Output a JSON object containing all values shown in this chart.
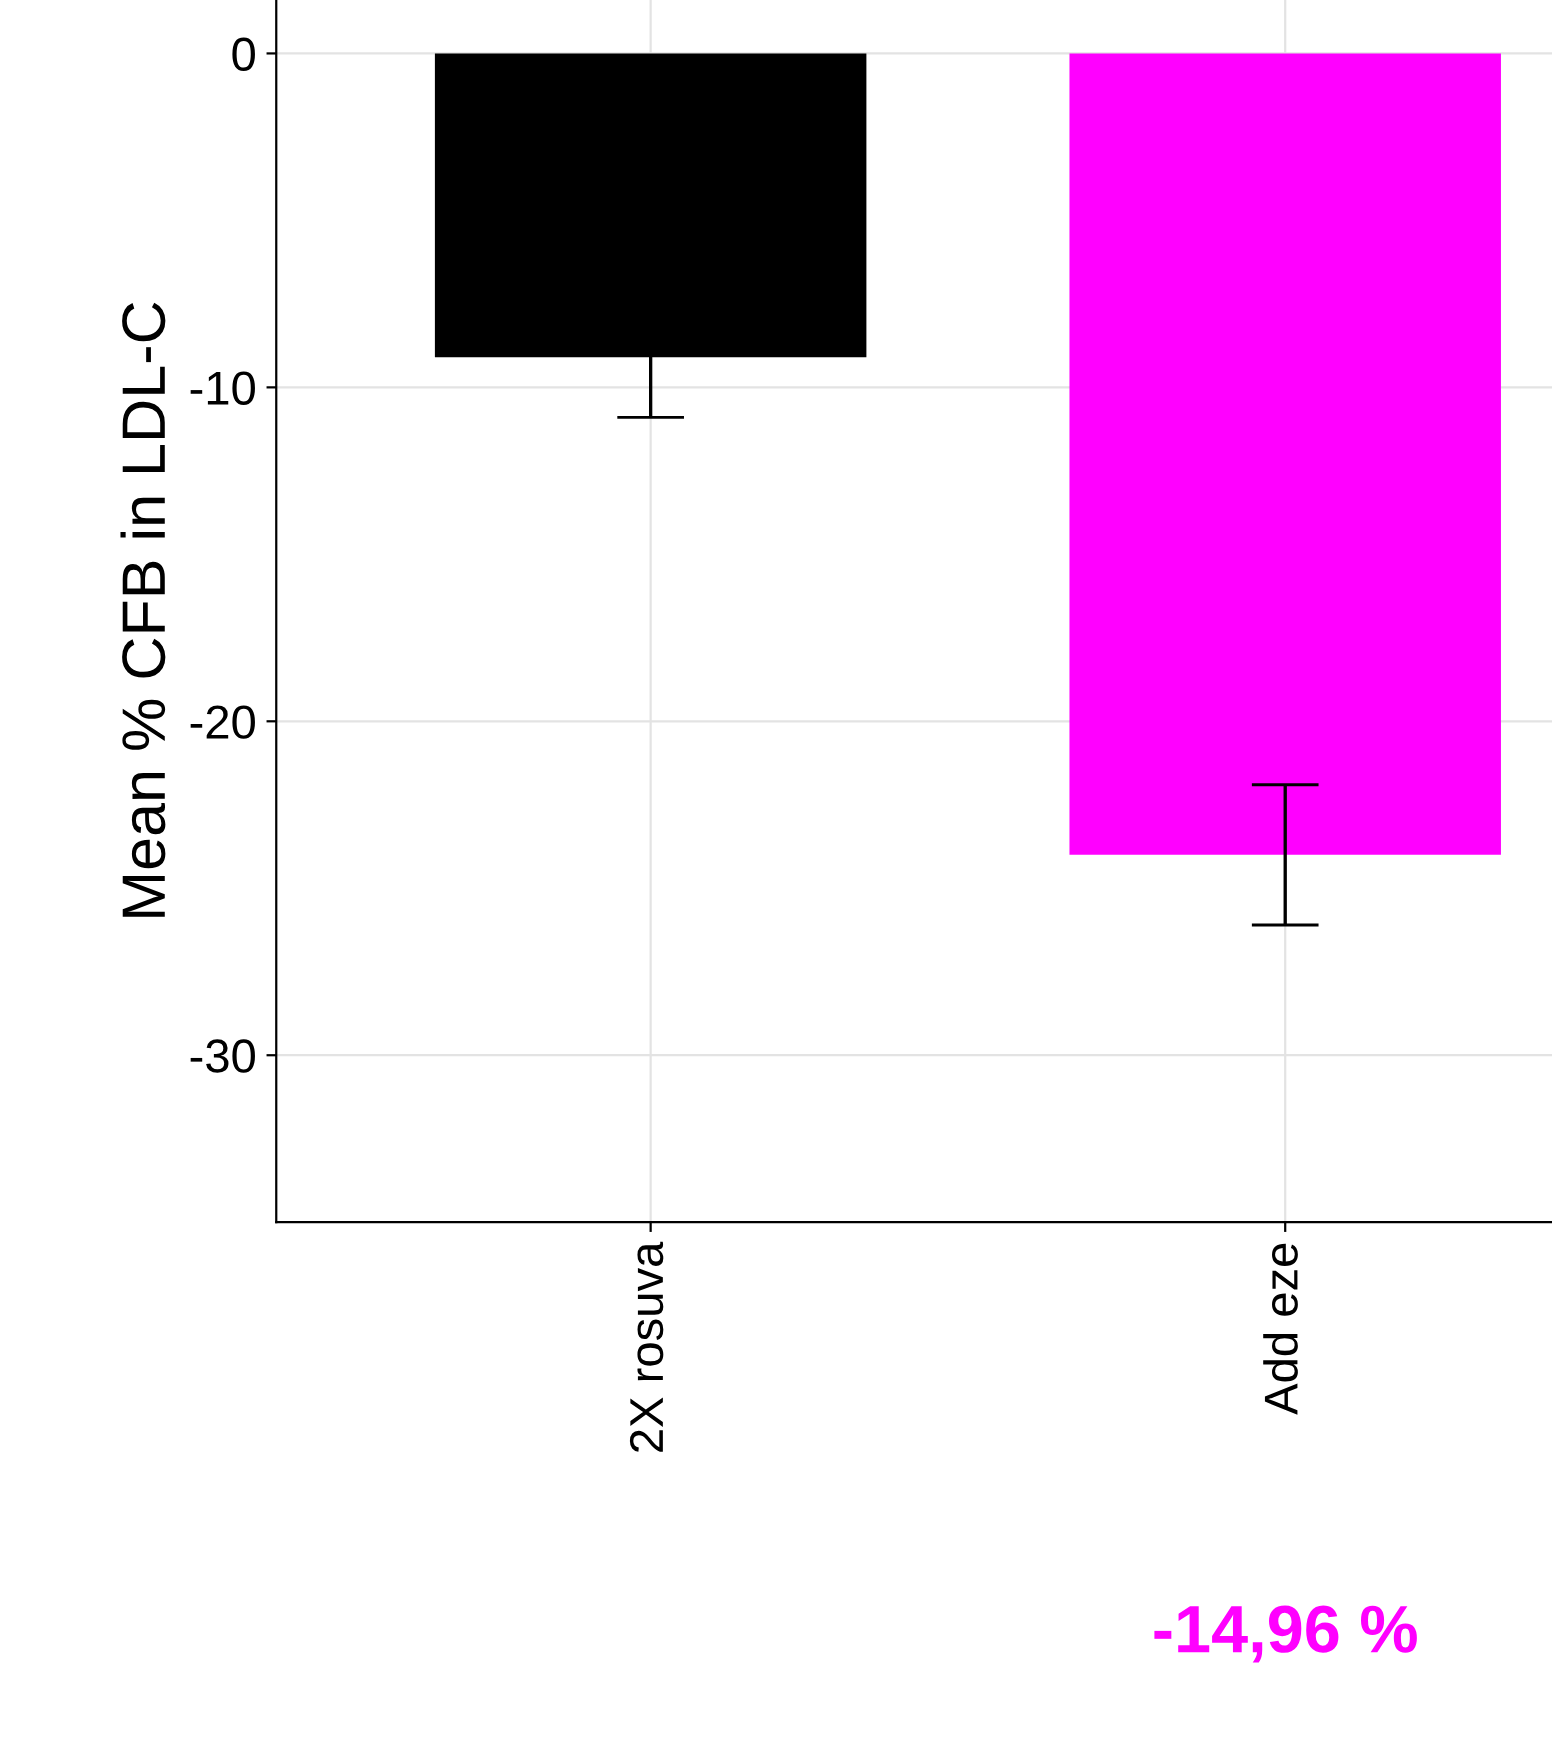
{
  "chart_data": {
    "type": "bar",
    "ylabel": "Mean % CFB in LDL-C",
    "categories": [
      "2X rosuva",
      "Add eze"
    ],
    "values": [
      -9.1,
      -24.0
    ],
    "colors": [
      "#000000",
      "#ff00ff"
    ],
    "errors": [
      1.8,
      2.1
    ],
    "ylim": [
      -35,
      1.6
    ],
    "yticks": [
      0,
      -10,
      -20,
      -30
    ],
    "grid": true,
    "annotations": [
      "-14,96 %"
    ]
  }
}
